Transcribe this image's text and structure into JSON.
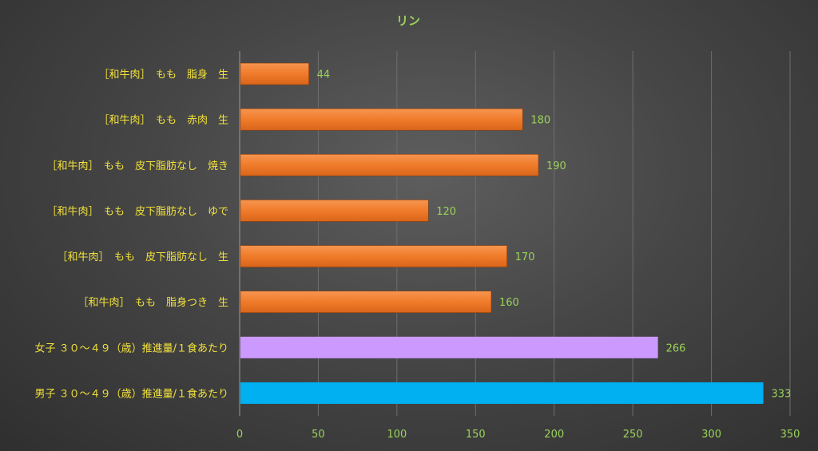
{
  "chart_data": {
    "type": "bar",
    "orientation": "horizontal",
    "title": "リン",
    "categories": [
      "［和牛肉］　もも　脂身　生",
      "［和牛肉］　もも　赤肉　生",
      "［和牛肉］　もも　皮下脂肪なし　焼き",
      "［和牛肉］　もも　皮下脂肪なし　ゆで",
      "［和牛肉］　もも　皮下脂肪なし　生",
      "［和牛肉］　もも　脂身つき　生",
      "女子 ３０～４９（歳）推進量/１食あたり",
      "男子 ３０～４９（歳）推進量/１食あたり"
    ],
    "values": [
      44,
      180,
      190,
      120,
      170,
      160,
      266,
      333
    ],
    "bar_colors": [
      "#f07b2a",
      "#f07b2a",
      "#f07b2a",
      "#f07b2a",
      "#f07b2a",
      "#f07b2a",
      "#cc99ff",
      "#00b0f0"
    ],
    "xlim": [
      0,
      350
    ],
    "xticks": [
      0,
      50,
      100,
      150,
      200,
      250,
      300,
      350
    ],
    "grid": true,
    "legend": "none",
    "data_labels": true,
    "colors": {
      "title": "#9bd35a",
      "category_labels": "#f2e13a",
      "value_labels": "#9bd35a",
      "tick_labels": "#9bd35a"
    }
  }
}
